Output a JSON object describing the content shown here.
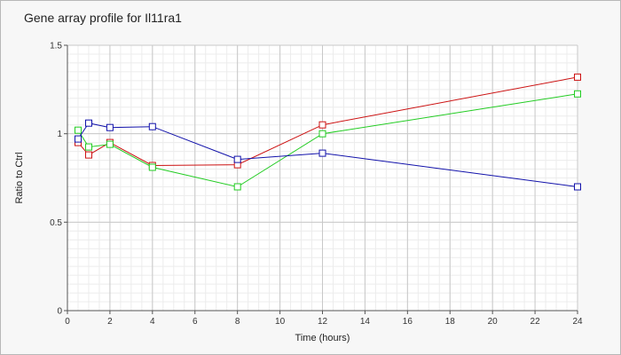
{
  "chart_data": {
    "type": "line",
    "title": "Gene array profile for Il11ra1",
    "xlabel": "Time (hours)",
    "ylabel": "Ratio to Ctrl",
    "xlim": [
      0,
      24
    ],
    "ylim": [
      0,
      1.5
    ],
    "x_ticks": [
      0,
      2,
      4,
      6,
      8,
      10,
      12,
      14,
      16,
      18,
      20,
      22,
      24
    ],
    "y_ticks": [
      0,
      0.5,
      1,
      1.5
    ],
    "x_tick_labels": [
      "0",
      "2",
      "4",
      "6",
      "8",
      "10",
      "12",
      "14",
      "16",
      "18",
      "20",
      "22",
      "24"
    ],
    "y_tick_labels": [
      "0",
      "0.5",
      "1",
      "1.5"
    ],
    "grid": true,
    "legend": "none",
    "series": [
      {
        "color": "#cc1111",
        "x": [
          0.5,
          1,
          2,
          4,
          8,
          12,
          24
        ],
        "y": [
          0.95,
          0.88,
          0.95,
          0.82,
          0.825,
          1.05,
          1.32
        ]
      },
      {
        "color": "#22cc22",
        "x": [
          0.5,
          1,
          2,
          4,
          8,
          12,
          24
        ],
        "y": [
          1.02,
          0.925,
          0.94,
          0.81,
          0.7,
          1.0,
          1.225
        ]
      },
      {
        "color": "#1111aa",
        "x": [
          0.5,
          1,
          2,
          4,
          8,
          12,
          24
        ],
        "y": [
          0.97,
          1.06,
          1.035,
          1.04,
          0.855,
          0.89,
          0.7
        ]
      }
    ]
  }
}
